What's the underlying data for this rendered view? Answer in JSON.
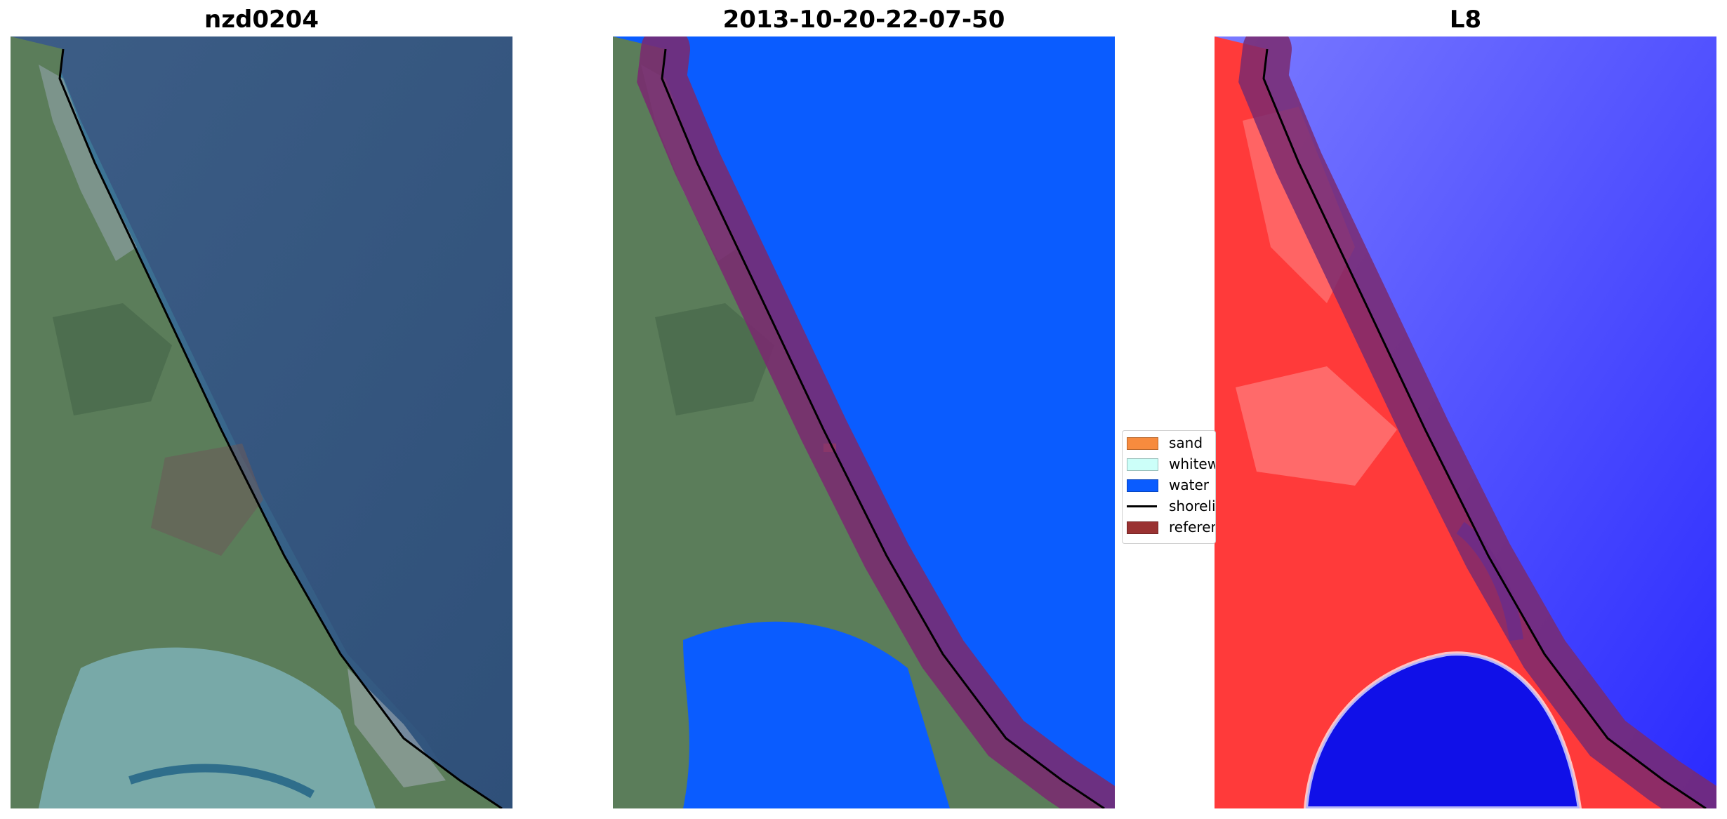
{
  "panels": [
    {
      "title": "nzd0204"
    },
    {
      "title": "2013-10-20-22-07-50"
    },
    {
      "title": "L8"
    }
  ],
  "legend": {
    "items": [
      {
        "label": "sand",
        "color": "#f78b3e",
        "kind": "patch"
      },
      {
        "label": "whitewater",
        "color": "#ccfff9",
        "kind": "patch"
      },
      {
        "label": "water",
        "color": "#0a5cff",
        "kind": "patch"
      },
      {
        "label": "shoreline",
        "color": "#000000",
        "kind": "line"
      },
      {
        "label": "reference shoreline buffer",
        "color": "#9a3232",
        "kind": "patch"
      }
    ]
  },
  "colors": {
    "water_rgb": "#3a5d85",
    "land_rgb": "#5e7f5c",
    "water_class": "#0a5cff",
    "buffer": "#7a2a6f",
    "index_land": "#ff3030",
    "index_water": "#2020ff"
  }
}
